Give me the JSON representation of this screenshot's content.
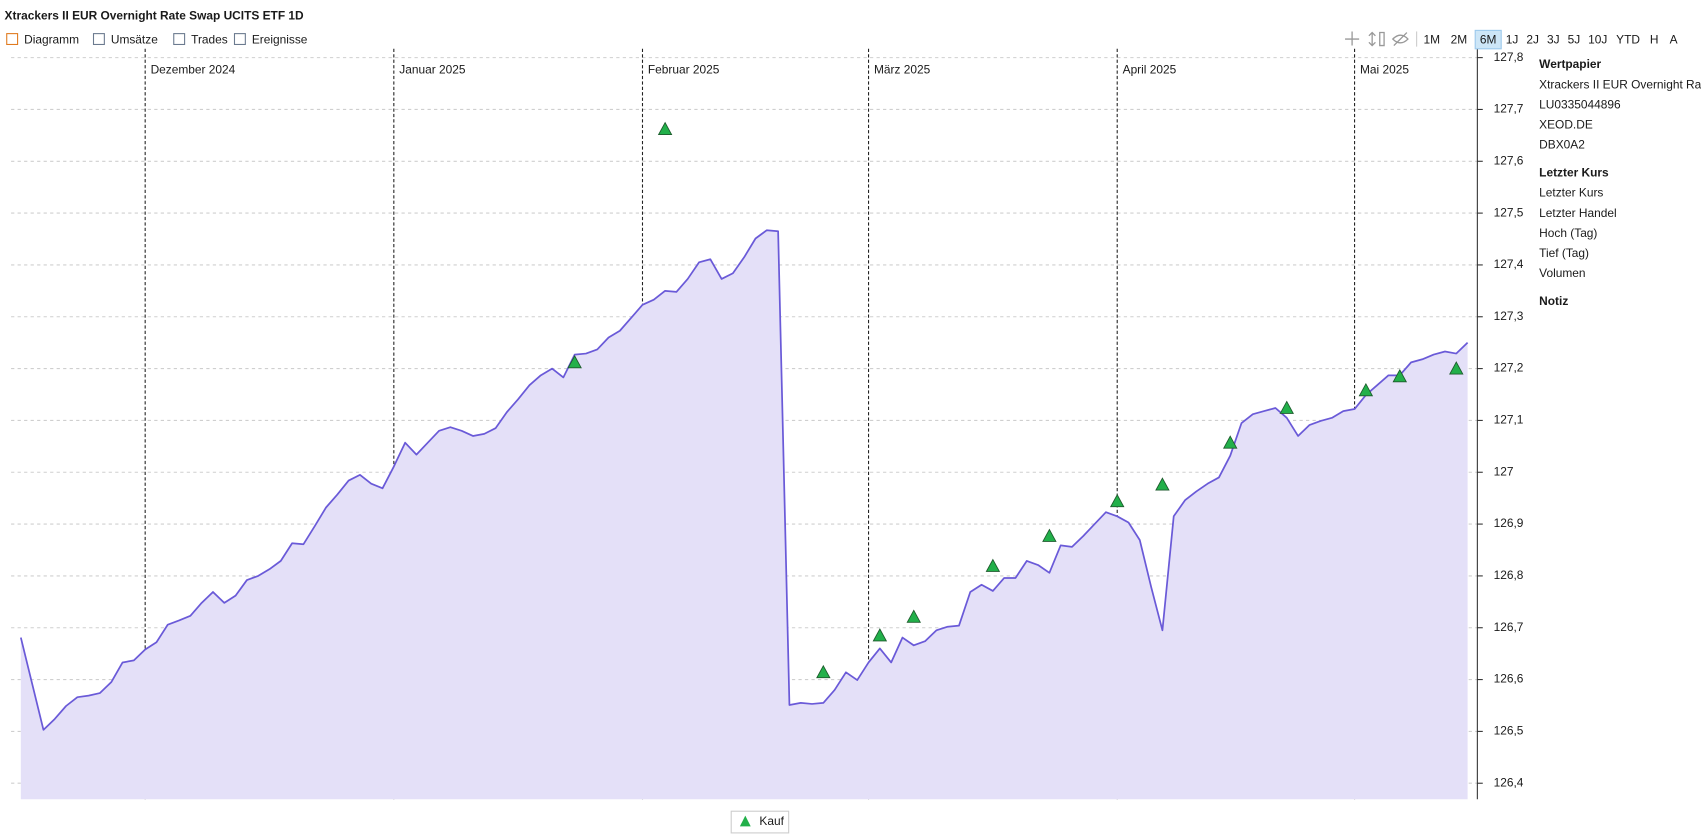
{
  "header": {
    "title": "Xtrackers II EUR Overnight Rate Swap UCITS ETF 1D"
  },
  "toolbar": {
    "toggles": [
      "Diagramm",
      "Umsätze",
      "Trades",
      "Ereignisse"
    ],
    "ranges": [
      "1M",
      "2M",
      "6M",
      "1J",
      "2J",
      "3J",
      "5J",
      "10J",
      "YTD",
      "H",
      "A"
    ],
    "selected": "6M"
  },
  "sidebar": {
    "sections": [
      {
        "title": "Wertpapier",
        "rows": [
          "Xtrackers II EUR Overnight Rate",
          "LU0335044896",
          "XEOD.DE",
          "DBX0A2"
        ]
      },
      {
        "title": "Letzter Kurs",
        "rows": [
          "Letzter Kurs",
          "Letzter Handel",
          "Hoch (Tag)",
          "Tief (Tag)",
          "Volumen"
        ]
      },
      {
        "title": "Notiz",
        "rows": []
      }
    ]
  },
  "chart_data": {
    "type": "line",
    "categories": [
      null,
      null,
      null,
      null,
      null,
      null,
      null,
      null,
      null,
      null,
      null,
      "Dezember 2024",
      null,
      null,
      null,
      null,
      null,
      null,
      null,
      null,
      null,
      null,
      null,
      null,
      null,
      null,
      null,
      null,
      null,
      null,
      null,
      null,
      null,
      "Januar 2025",
      null,
      null,
      null,
      null,
      null,
      null,
      null,
      null,
      null,
      null,
      null,
      null,
      null,
      null,
      null,
      null,
      null,
      null,
      null,
      null,
      null,
      "Februar 2025",
      null,
      null,
      null,
      null,
      null,
      null,
      null,
      null,
      null,
      null,
      null,
      null,
      null,
      null,
      null,
      null,
      null,
      null,
      null,
      "März 2025",
      null,
      null,
      null,
      null,
      null,
      null,
      null,
      null,
      null,
      null,
      null,
      null,
      null,
      null,
      null,
      null,
      null,
      null,
      null,
      null,
      null,
      "April 2025",
      null,
      null,
      null,
      null,
      null,
      null,
      null,
      null,
      null,
      null,
      null,
      null,
      null,
      null,
      null,
      null,
      null,
      null,
      null,
      null,
      "Mai 2025",
      null,
      null,
      null,
      null,
      null,
      null,
      null,
      null,
      null,
      null
    ],
    "series": [
      {
        "color": "#6a5ad8",
        "fill": "#e4e0f8",
        "values": [
          126.681,
          126.592,
          126.503,
          126.524,
          126.549,
          126.566,
          126.569,
          126.574,
          126.595,
          126.633,
          126.637,
          126.658,
          126.672,
          126.706,
          126.714,
          126.723,
          126.748,
          126.769,
          126.748,
          126.762,
          126.792,
          126.8,
          126.813,
          126.829,
          126.863,
          126.861,
          126.896,
          126.932,
          126.957,
          126.984,
          126.995,
          126.978,
          126.969,
          127.011,
          127.057,
          127.034,
          127.057,
          127.08,
          127.087,
          127.08,
          127.07,
          127.074,
          127.085,
          127.116,
          127.141,
          127.168,
          127.187,
          127.2,
          127.183,
          127.227,
          127.229,
          127.237,
          127.26,
          127.273,
          127.298,
          127.323,
          127.333,
          127.35,
          127.348,
          127.373,
          127.405,
          127.411,
          127.373,
          127.384,
          127.415,
          127.451,
          127.467,
          127.465,
          126.551,
          126.555,
          126.553,
          126.555,
          126.58,
          126.614,
          126.599,
          126.633,
          126.66,
          126.633,
          126.681,
          126.666,
          126.674,
          126.695,
          126.702,
          126.704,
          126.769,
          126.783,
          126.771,
          126.796,
          126.796,
          126.829,
          126.821,
          126.806,
          126.859,
          126.856,
          126.877,
          126.9,
          126.923,
          126.915,
          126.903,
          126.869,
          126.779,
          126.695,
          126.915,
          126.946,
          126.963,
          126.978,
          126.99,
          127.032,
          127.095,
          127.112,
          127.118,
          127.124,
          127.105,
          127.07,
          127.091,
          127.099,
          127.105,
          127.118,
          127.122,
          127.149,
          127.168,
          127.187,
          127.187,
          127.212,
          127.218,
          127.227,
          127.233,
          127.229,
          127.25
        ]
      },
      {
        "name": "Kauf",
        "color": "#22b04a",
        "marker": "triangle",
        "values": [
          null,
          null,
          null,
          null,
          null,
          null,
          null,
          null,
          null,
          null,
          null,
          null,
          null,
          null,
          null,
          null,
          null,
          null,
          null,
          null,
          null,
          null,
          null,
          null,
          null,
          null,
          null,
          null,
          null,
          null,
          null,
          null,
          null,
          null,
          null,
          null,
          null,
          null,
          null,
          null,
          null,
          null,
          null,
          null,
          null,
          null,
          null,
          null,
          null,
          127.212,
          null,
          null,
          null,
          null,
          null,
          null,
          null,
          127.662,
          null,
          null,
          null,
          null,
          null,
          null,
          null,
          null,
          null,
          null,
          null,
          null,
          null,
          126.614,
          null,
          null,
          null,
          null,
          126.685,
          null,
          null,
          126.721,
          null,
          null,
          null,
          null,
          null,
          null,
          126.819,
          null,
          null,
          null,
          null,
          126.877,
          null,
          null,
          null,
          null,
          null,
          126.944,
          null,
          null,
          null,
          126.976,
          null,
          null,
          null,
          null,
          null,
          127.057,
          null,
          null,
          null,
          null,
          127.124,
          null,
          null,
          null,
          null,
          null,
          null,
          127.158,
          null,
          null,
          127.185,
          null,
          null,
          null,
          null,
          127.2,
          null
        ]
      }
    ],
    "ylim": [
      126.369,
      127.817
    ],
    "yticks": [
      {
        "value": 126.4,
        "label": "126,4"
      },
      {
        "value": 126.5,
        "label": "126,5"
      },
      {
        "value": 126.6,
        "label": "126,6"
      },
      {
        "value": 126.7,
        "label": "126,7"
      },
      {
        "value": 126.8,
        "label": "126,8"
      },
      {
        "value": 126.9,
        "label": "126,9"
      },
      127,
      {
        "value": 127.1,
        "label": "127,1"
      },
      {
        "value": 127.2,
        "label": "127,2"
      },
      {
        "value": 127.3,
        "label": "127,3"
      },
      {
        "value": 127.4,
        "label": "127,4"
      },
      {
        "value": 127.5,
        "label": "127,5"
      },
      {
        "value": 127.6,
        "label": "127,6"
      },
      {
        "value": 127.7,
        "label": "127,7"
      },
      {
        "value": 127.8,
        "label": "127,8"
      }
    ],
    "grid": true
  }
}
